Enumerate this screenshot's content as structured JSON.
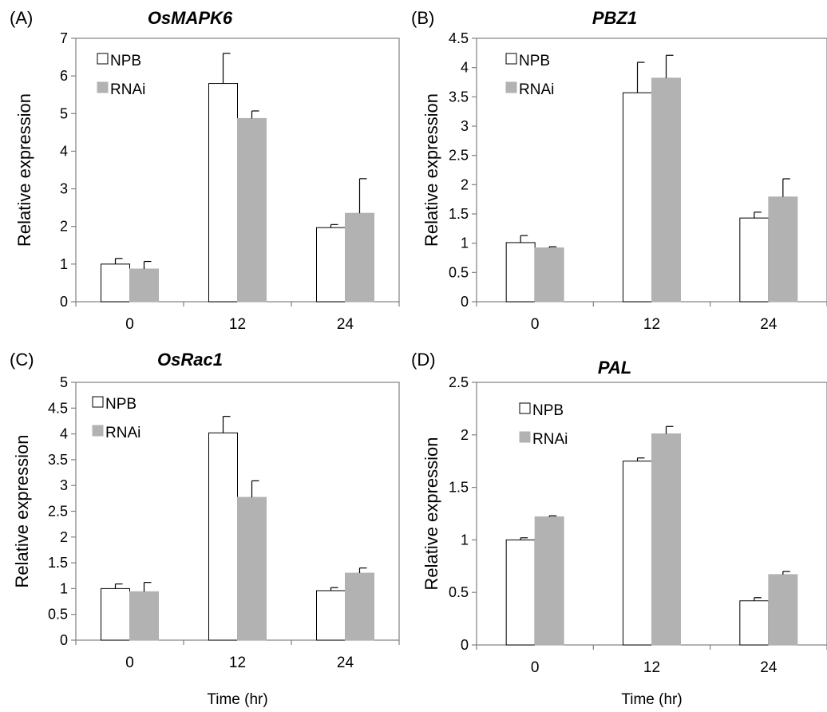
{
  "chart_data": [
    {
      "type": "bar",
      "panel": "(A)",
      "title": "OsMAPK6",
      "ylabel": "Relative expression",
      "xlabel": "",
      "categories": [
        "0",
        "12",
        "24"
      ],
      "ylim": [
        0,
        7
      ],
      "yticks": [
        "0",
        "1",
        "2",
        "3",
        "4",
        "5",
        "6",
        "7"
      ],
      "series": [
        {
          "name": "NPB",
          "color": "#ffffff",
          "values": [
            1.0,
            5.8,
            1.97
          ],
          "errors": [
            0.15,
            0.8,
            0.08
          ]
        },
        {
          "name": "RNAi",
          "color": "#b2b2b2",
          "values": [
            0.87,
            4.87,
            2.35
          ],
          "errors": [
            0.2,
            0.2,
            0.92
          ]
        }
      ],
      "legend": "top-left",
      "grid": false
    },
    {
      "type": "bar",
      "panel": "(B)",
      "title": "PBZ1",
      "ylabel": "Relative expression",
      "xlabel": "",
      "categories": [
        "0",
        "12",
        "24"
      ],
      "ylim": [
        0,
        4.5
      ],
      "yticks": [
        "0",
        "0.5",
        "1",
        "1.5",
        "2",
        "2.5",
        "3",
        "3.5",
        "4",
        "4.5"
      ],
      "series": [
        {
          "name": "NPB",
          "color": "#ffffff",
          "values": [
            1.01,
            3.57,
            1.43
          ],
          "errors": [
            0.12,
            0.52,
            0.1
          ]
        },
        {
          "name": "RNAi",
          "color": "#b2b2b2",
          "values": [
            0.92,
            3.82,
            1.79
          ],
          "errors": [
            0.02,
            0.39,
            0.31
          ]
        }
      ],
      "legend": "top-left",
      "grid": false
    },
    {
      "type": "bar",
      "panel": "(C)",
      "title": "OsRac1",
      "ylabel": "Relative expression",
      "xlabel": "Time (hr)",
      "categories": [
        "0",
        "12",
        "24"
      ],
      "ylim": [
        0,
        5
      ],
      "yticks": [
        "0",
        "0.5",
        "1",
        "1.5",
        "2",
        "2.5",
        "3",
        "3.5",
        "4",
        "4.5",
        "5"
      ],
      "series": [
        {
          "name": "NPB",
          "color": "#ffffff",
          "values": [
            1.0,
            4.02,
            0.96
          ],
          "errors": [
            0.09,
            0.32,
            0.06
          ]
        },
        {
          "name": "RNAi",
          "color": "#b2b2b2",
          "values": [
            0.94,
            2.77,
            1.3
          ],
          "errors": [
            0.18,
            0.32,
            0.1
          ]
        }
      ],
      "legend": "top-left",
      "grid": false
    },
    {
      "type": "bar",
      "panel": "(D)",
      "title": "PAL",
      "ylabel": "Relative expression",
      "xlabel": "Time (hr)",
      "categories": [
        "0",
        "12",
        "24"
      ],
      "ylim": [
        0,
        2.5
      ],
      "yticks": [
        "0",
        "0.5",
        "1",
        "1.5",
        "2",
        "2.5"
      ],
      "series": [
        {
          "name": "NPB",
          "color": "#ffffff",
          "values": [
            1.0,
            1.75,
            0.42
          ],
          "errors": [
            0.02,
            0.03,
            0.03
          ]
        },
        {
          "name": "RNAi",
          "color": "#b2b2b2",
          "values": [
            1.22,
            2.01,
            0.67
          ],
          "errors": [
            0.01,
            0.07,
            0.03
          ]
        }
      ],
      "legend": "top-left",
      "grid": false
    }
  ]
}
